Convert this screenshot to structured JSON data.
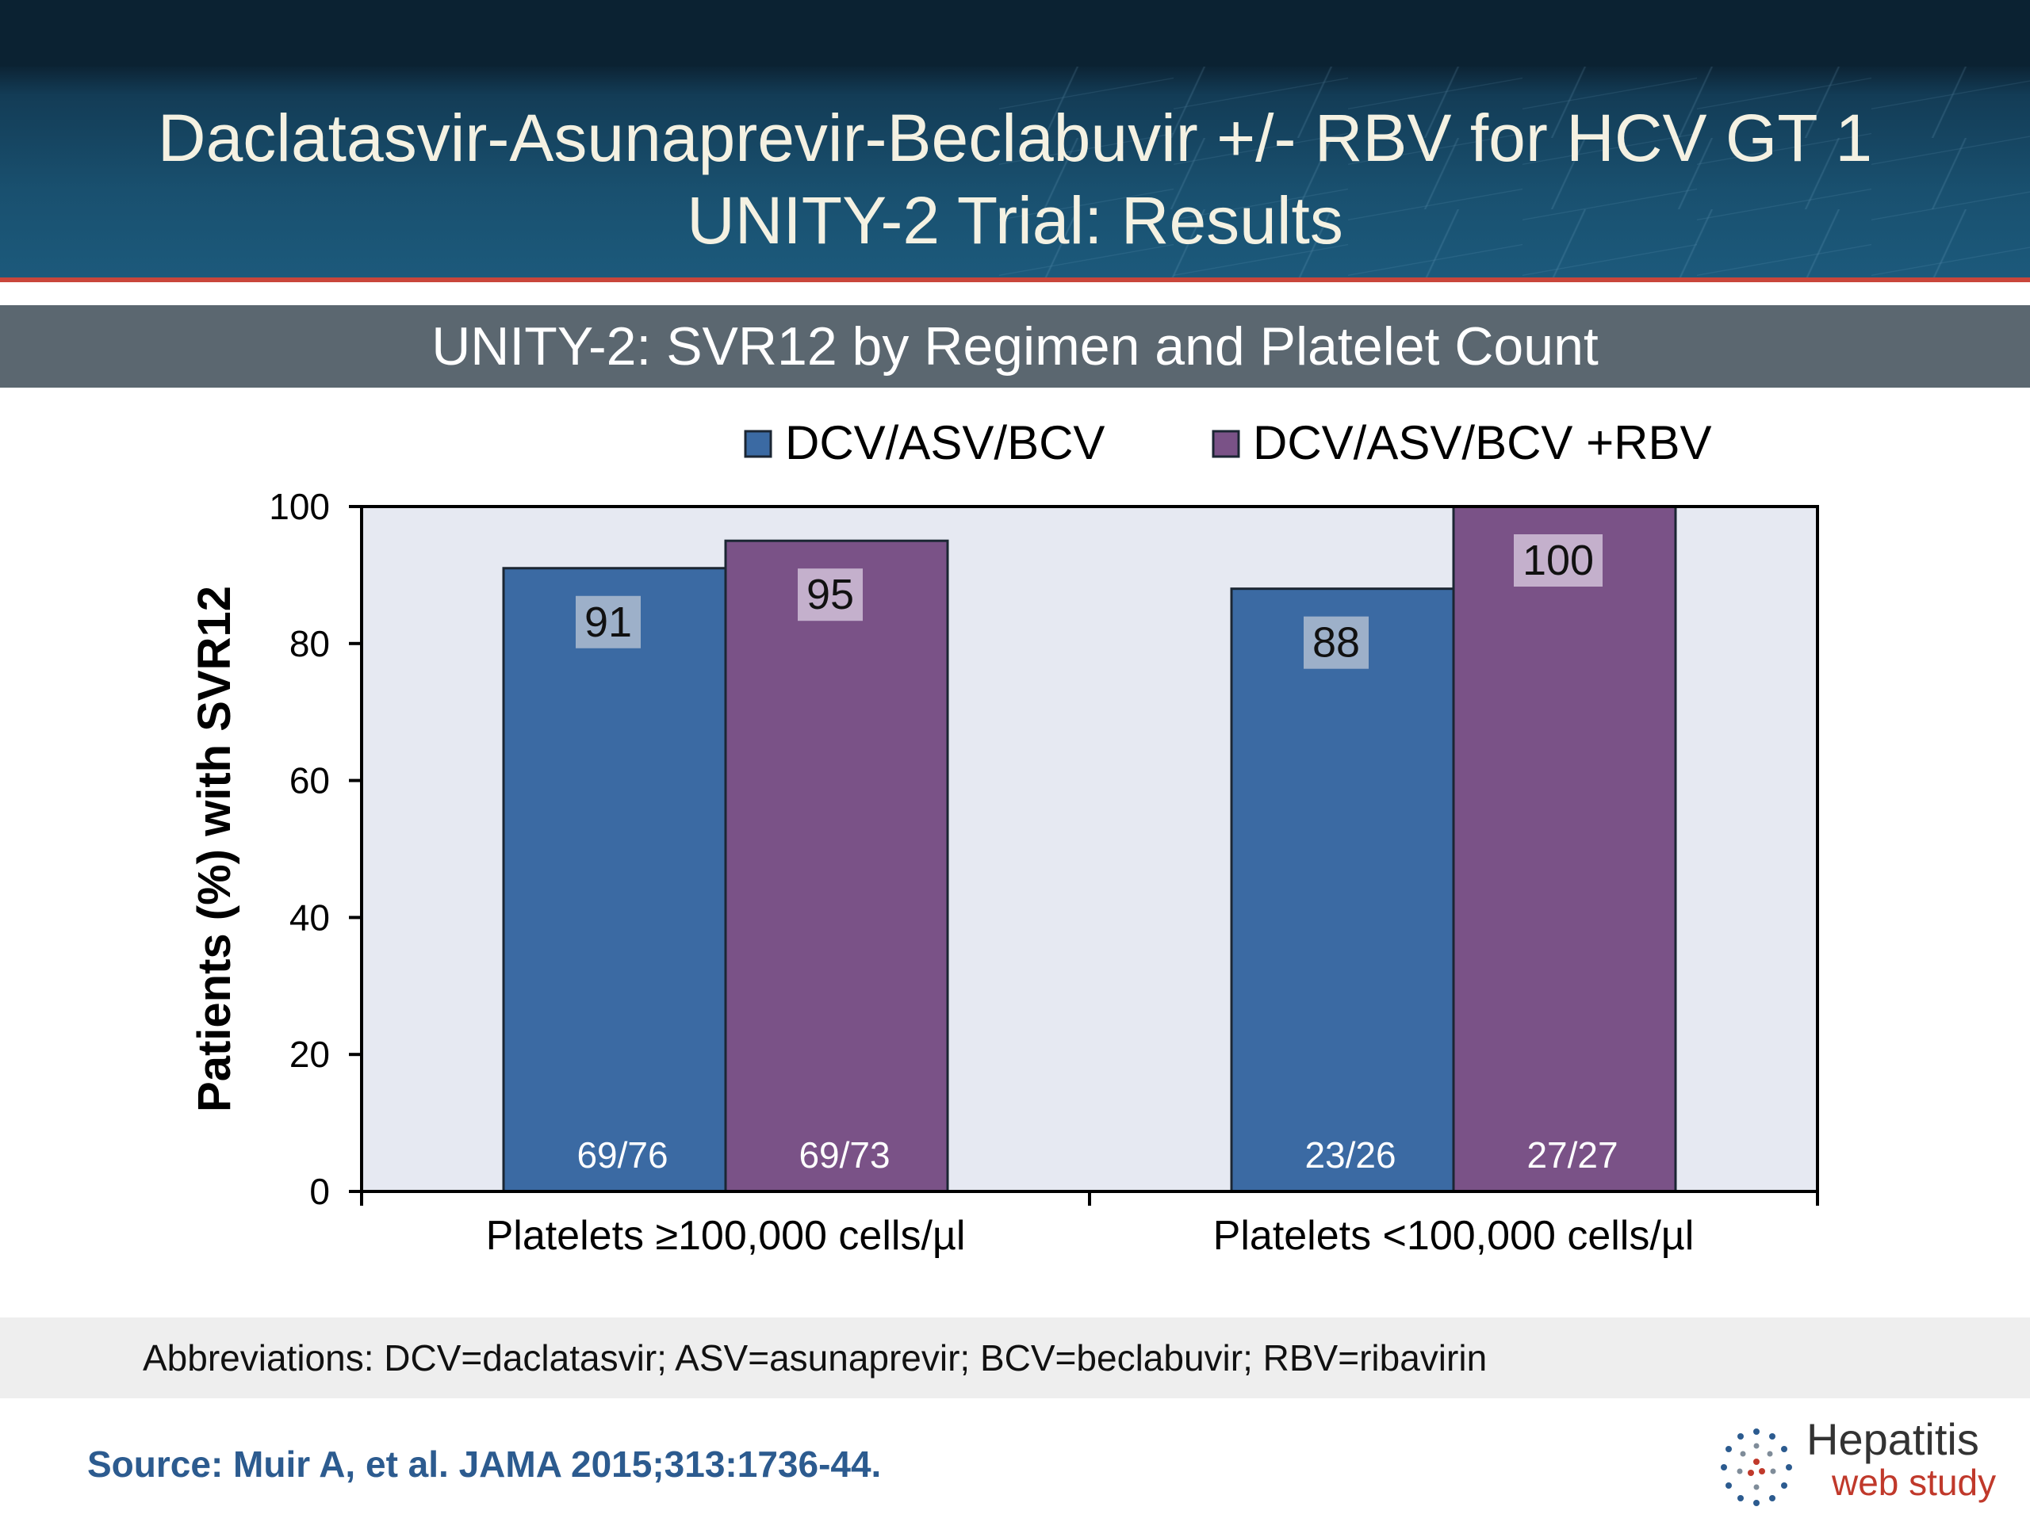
{
  "slide": {
    "title_line1": "Daclatasvir-Asunaprevir-Beclabuvir +/- RBV for HCV GT 1",
    "title_line2": "UNITY-2 Trial: Results",
    "subtitle": "UNITY-2: SVR12 by Regimen and Platelet Count",
    "abbreviations": "Abbreviations: DCV=daclatasvir; ASV=asunaprevir; BCV=beclabuvir; RBV=ribavirin",
    "source": "Source: Muir A, et al. JAMA 2015;313:1736-44.",
    "logo_name": "Hepatitis",
    "logo_sub": "web study"
  },
  "chart_data": {
    "type": "bar",
    "categories": [
      "Platelets ≥100,000 cells/µl",
      "Platelets <100,000 cells/µl"
    ],
    "series": [
      {
        "name": "DCV/ASV/BCV",
        "values": [
          91,
          88
        ],
        "counts": [
          "69/76",
          "23/26"
        ],
        "color": "#3b6aa3"
      },
      {
        "name": "DCV/ASV/BCV +RBV",
        "values": [
          95,
          100
        ],
        "counts": [
          "69/73",
          "27/27"
        ],
        "color": "#7a5287"
      }
    ],
    "ylabel": "Patients (%) with SVR12",
    "ylim": [
      0,
      100
    ],
    "yticks": [
      0,
      20,
      40,
      60,
      80,
      100
    ],
    "legend_position": "top",
    "plot_background": "#e6e9f2"
  }
}
